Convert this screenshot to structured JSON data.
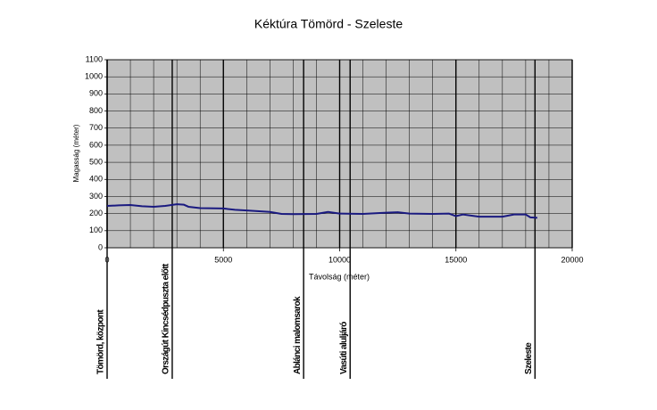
{
  "chart_data": {
    "type": "line",
    "title": "Kéktúra Tömörd - Szeleste",
    "xlabel": "Távolság (méter)",
    "ylabel": "Magasság (méter)",
    "x": [
      0,
      500,
      1000,
      1500,
      2000,
      2500,
      3000,
      3300,
      3500,
      4000,
      5000,
      5500,
      6000,
      7000,
      7500,
      8000,
      9000,
      9500,
      10000,
      11000,
      12000,
      12500,
      13000,
      14000,
      14700,
      15000,
      15300,
      16000,
      17000,
      17500,
      18000,
      18200,
      18500
    ],
    "series": [
      {
        "color": "#1a1a80",
        "values": [
          245,
          248,
          250,
          243,
          240,
          245,
          255,
          252,
          240,
          232,
          230,
          222,
          218,
          210,
          198,
          197,
          198,
          210,
          200,
          198,
          205,
          208,
          200,
          198,
          200,
          185,
          195,
          182,
          182,
          195,
          195,
          178,
          175
        ]
      }
    ],
    "xlim": [
      0,
      20000
    ],
    "xticks": [
      0,
      5000,
      10000,
      15000,
      20000
    ],
    "ylim": [
      0,
      1100
    ],
    "yticks": [
      0,
      100,
      200,
      300,
      400,
      500,
      600,
      700,
      800,
      900,
      1000,
      1100
    ],
    "grid": true,
    "minor_grid_step": 1000,
    "background": "#c0c0c0",
    "markers": [
      {
        "x": 0,
        "label": "Tömörd, központ"
      },
      {
        "x": 2800,
        "label": "Országút Kincsédpuszta előtt"
      },
      {
        "x": 8450,
        "label": "Ablánci malomsarok"
      },
      {
        "x": 10450,
        "label": "Vasúti aluljáró"
      },
      {
        "x": 18400,
        "label": "Szeleste"
      }
    ]
  }
}
